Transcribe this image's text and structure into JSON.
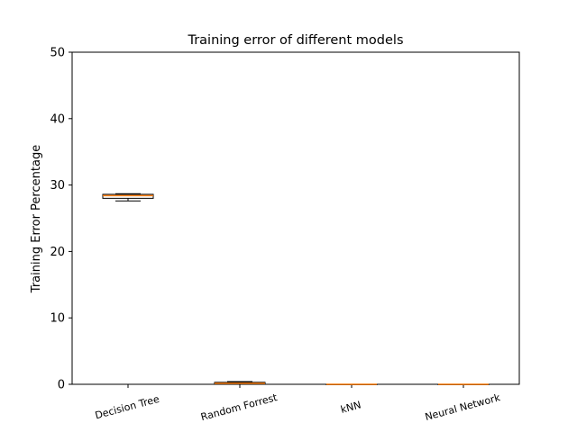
{
  "chart_data": {
    "type": "box",
    "title": "Training error of different models",
    "xlabel": "",
    "ylabel": "Training Error Percentage",
    "ylim": [
      0,
      50
    ],
    "yticks": [
      "0",
      "10",
      "20",
      "30",
      "40",
      "50"
    ],
    "categories": [
      "Decision Tree",
      "Random Forrest",
      "kNN",
      "Neural Network"
    ],
    "boxes": [
      {
        "whislo": 27.6,
        "q1": 28.0,
        "med": 28.4,
        "q3": 28.6,
        "whishi": 28.7
      },
      {
        "whislo": 0.0,
        "q1": 0.05,
        "med": 0.15,
        "q3": 0.3,
        "whishi": 0.4
      },
      {
        "whislo": 0.0,
        "q1": 0.0,
        "med": 0.0,
        "q3": 0.0,
        "whishi": 0.0
      },
      {
        "whislo": 0.0,
        "q1": 0.0,
        "med": 0.0,
        "q3": 0.0,
        "whishi": 0.0
      }
    ],
    "grid": false,
    "colors": {
      "box": "#000000",
      "median": "#ff7f0e"
    }
  }
}
